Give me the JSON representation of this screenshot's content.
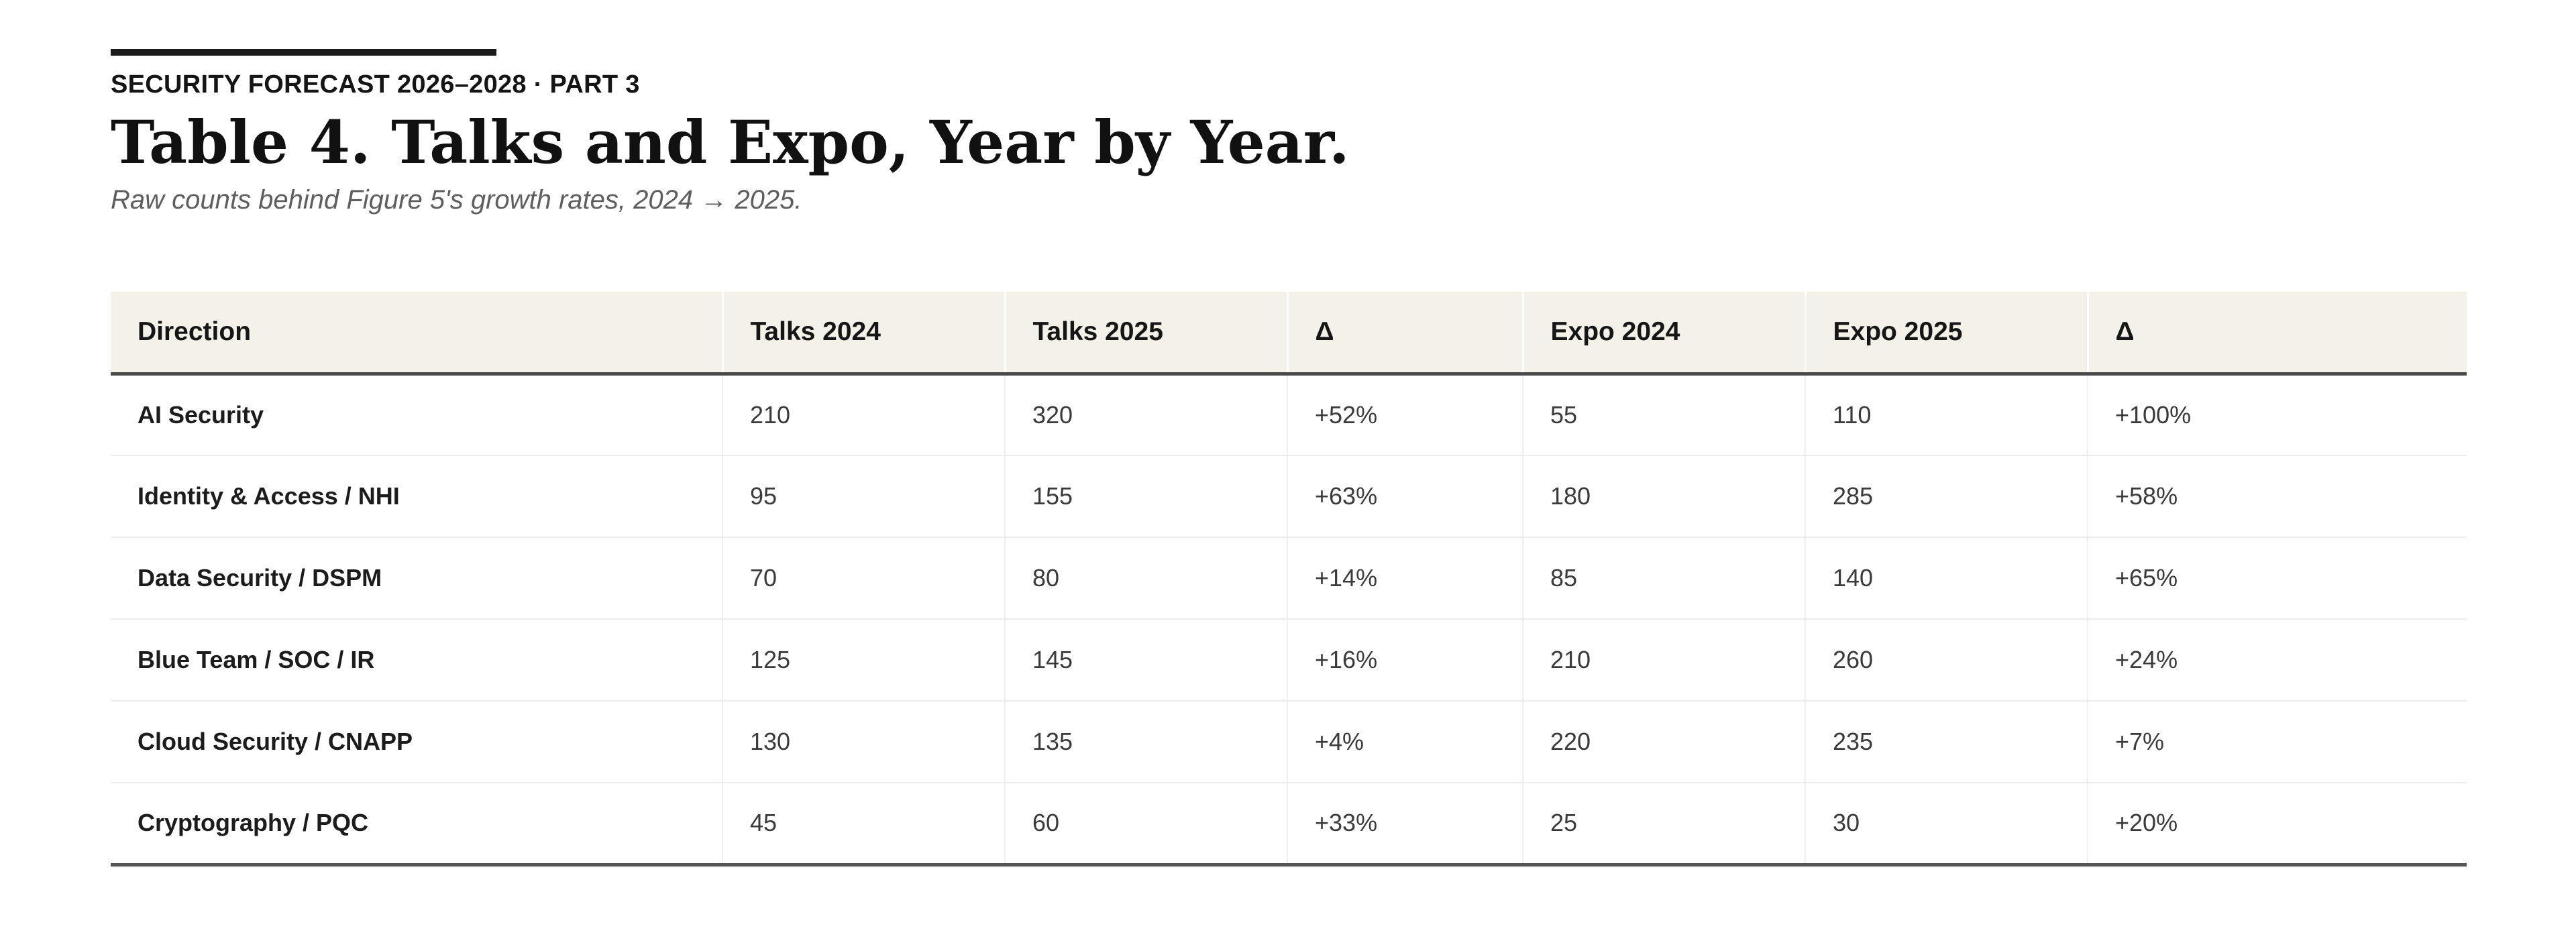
{
  "header": {
    "kicker": "SECURITY FORECAST 2026–2028 · PART 3",
    "title": "Table 4. Talks and Expo, Year by Year.",
    "subtitle": "Raw counts behind Figure 5's growth rates, 2024 → 2025."
  },
  "table": {
    "columns": [
      "Direction",
      "Talks 2024",
      "Talks 2025",
      "Δ",
      "Expo 2024",
      "Expo 2025",
      "Δ"
    ],
    "rows": [
      [
        "AI Security",
        "210",
        "320",
        "+52%",
        "55",
        "110",
        "+100%"
      ],
      [
        "Identity & Access / NHI",
        "95",
        "155",
        "+63%",
        "180",
        "285",
        "+58%"
      ],
      [
        "Data Security / DSPM",
        "70",
        "80",
        "+14%",
        "85",
        "140",
        "+65%"
      ],
      [
        "Blue Team / SOC / IR",
        "125",
        "145",
        "+16%",
        "210",
        "260",
        "+24%"
      ],
      [
        "Cloud Security / CNAPP",
        "130",
        "135",
        "+4%",
        "220",
        "235",
        "+7%"
      ],
      [
        "Cryptography / PQC",
        "45",
        "60",
        "+33%",
        "25",
        "30",
        "+20%"
      ]
    ]
  },
  "colors": {
    "header_band": "#f4f1e8",
    "rule": "#1b1b1b",
    "subtitle_text": "#5e5e5e"
  }
}
